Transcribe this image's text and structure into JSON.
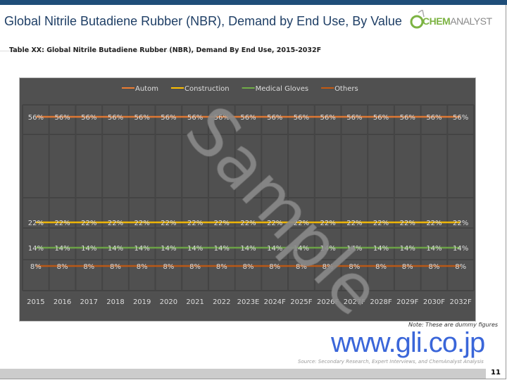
{
  "header": {
    "title": "Global Nitrile Butadiene Rubber (NBR), Demand by End Use, By Value",
    "logo_text": "CHEMANALYST",
    "logo_highlight": "CHEM",
    "logo_rest": "ANALYST"
  },
  "subtitle": "Table XX: Global  Nitrile Butadiene Rubber (NBR), Demand By End Use, 2015-2032F",
  "watermark": "Sample",
  "note": "Note: These are dummy figures",
  "gli_watermark": "www.gli.co.jp",
  "source": "Source: Secondary Research, Expert Interviews, and ChemAnalyst  Analysis",
  "page_number": "11",
  "chart_data": {
    "type": "line",
    "title": "",
    "legend_position": "top",
    "categories": [
      "2015",
      "2016",
      "2017",
      "2018",
      "2019",
      "2020",
      "2021",
      "2022",
      "2023E",
      "2024F",
      "2025F",
      "2026F",
      "2027F",
      "2028F",
      "2029F",
      "2030F",
      "2032F"
    ],
    "series": [
      {
        "name": "Autom",
        "color": "#ed7d31",
        "values": [
          56,
          56,
          56,
          56,
          56,
          56,
          56,
          56,
          56,
          56,
          56,
          56,
          56,
          56,
          56,
          56,
          56
        ]
      },
      {
        "name": "Construction",
        "color": "#ffc000",
        "values": [
          22,
          22,
          22,
          22,
          22,
          22,
          22,
          22,
          22,
          22,
          22,
          22,
          22,
          22,
          22,
          22,
          22
        ]
      },
      {
        "name": "Medical Gloves",
        "color": "#70ad47",
        "values": [
          14,
          14,
          14,
          14,
          14,
          14,
          14,
          14,
          14,
          14,
          14,
          14,
          14,
          14,
          14,
          14,
          14
        ]
      },
      {
        "name": "Others",
        "color": "#c55a11",
        "values": [
          8,
          8,
          8,
          8,
          8,
          8,
          8,
          8,
          8,
          8,
          8,
          8,
          8,
          8,
          8,
          8,
          8
        ]
      }
    ],
    "data_label_suffix": "%",
    "background": "#505050"
  }
}
